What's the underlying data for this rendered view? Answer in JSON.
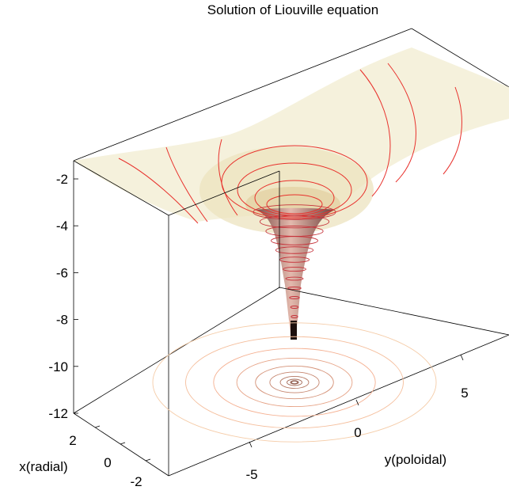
{
  "chart_data": {
    "type": "surface",
    "title": "Solution of Liouville equation",
    "xlabel": "y(poloidal)",
    "ylabel": "x(radial)",
    "zlabel": "",
    "x_ticks": [
      -5,
      0,
      5
    ],
    "y_ticks": [
      2,
      0,
      -2
    ],
    "z_ticks": [
      -2,
      -4,
      -6,
      -8,
      -10,
      -12
    ],
    "xlim": [
      -8,
      8
    ],
    "ylim": [
      -3,
      3
    ],
    "zlim": [
      -12,
      -1
    ],
    "grid": false,
    "surface_colormap": "pink",
    "contour_color": "#e8312c",
    "base_contour_levels": [
      -11,
      -10,
      -9,
      -8,
      -7,
      -6,
      -5,
      -4,
      -3,
      -2
    ]
  }
}
